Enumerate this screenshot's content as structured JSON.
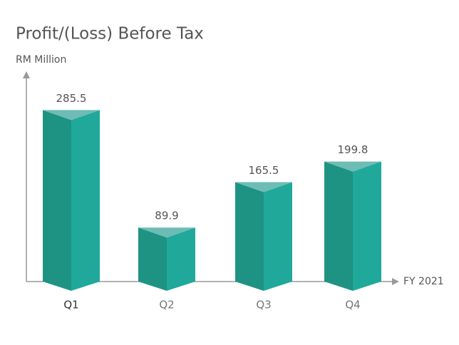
{
  "chart_data": {
    "type": "bar",
    "title": "Profit/(Loss) Before Tax",
    "y_label": "RM Million",
    "x_label": "FY 2021",
    "categories": [
      "Q1",
      "Q2",
      "Q3",
      "Q4"
    ],
    "values": [
      285.5,
      89.9,
      165.5,
      199.8
    ],
    "color": "#20a99a",
    "ylim": [
      0,
      350
    ]
  }
}
